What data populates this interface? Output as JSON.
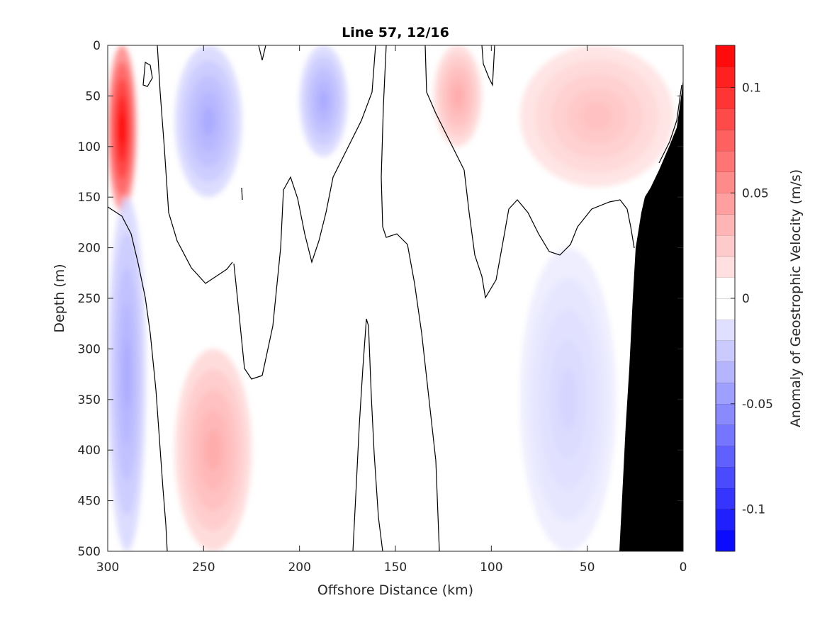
{
  "chart_data": {
    "type": "heatmap",
    "subtype": "filled-contour",
    "title": "Line 57, 12/16",
    "xlabel": "Offshore Distance (km)",
    "ylabel": "Depth (m)",
    "xlim": [
      300,
      0
    ],
    "ylim": [
      0,
      500
    ],
    "x_reversed": true,
    "y_reversed": true,
    "xticks": [
      300,
      250,
      200,
      150,
      100,
      50,
      0
    ],
    "yticks": [
      0,
      50,
      100,
      150,
      200,
      250,
      300,
      350,
      400,
      450,
      500
    ],
    "grid": false,
    "colorbar": {
      "label": "Anomaly of Geostrophic Velocity (m/s)",
      "range": [
        -0.12,
        0.12
      ],
      "levels": 24,
      "ticks": [
        0.1,
        0.05,
        0,
        -0.05,
        -0.1
      ],
      "tick_labels": [
        "0.1",
        "0.05",
        "0",
        "-0.05",
        "-0.1"
      ],
      "colormap": "blue-white-red",
      "min_color": "#0000ff",
      "max_color": "#ff0000",
      "zero_color": "#ffffff"
    },
    "zero_contour_color": "#000000",
    "bathymetry_color": "#000000",
    "features": [
      {
        "x_range": [
          300,
          285
        ],
        "depth_range": [
          0,
          165
        ],
        "value": 0.12
      },
      {
        "x_range": [
          265,
          230
        ],
        "depth_range": [
          0,
          150
        ],
        "value": -0.04
      },
      {
        "x_range": [
          200,
          175
        ],
        "depth_range": [
          0,
          110
        ],
        "value": -0.04
      },
      {
        "x_range": [
          130,
          105
        ],
        "depth_range": [
          0,
          100
        ],
        "value": 0.04
      },
      {
        "x_range": [
          85,
          5
        ],
        "depth_range": [
          0,
          140
        ],
        "value": 0.03
      },
      {
        "x_range": [
          300,
          280
        ],
        "depth_range": [
          150,
          500
        ],
        "value": -0.04
      },
      {
        "x_range": [
          265,
          225
        ],
        "depth_range": [
          300,
          500
        ],
        "value": 0.04
      },
      {
        "x_range": [
          85,
          35
        ],
        "depth_range": [
          200,
          500
        ],
        "value": -0.02
      }
    ]
  }
}
